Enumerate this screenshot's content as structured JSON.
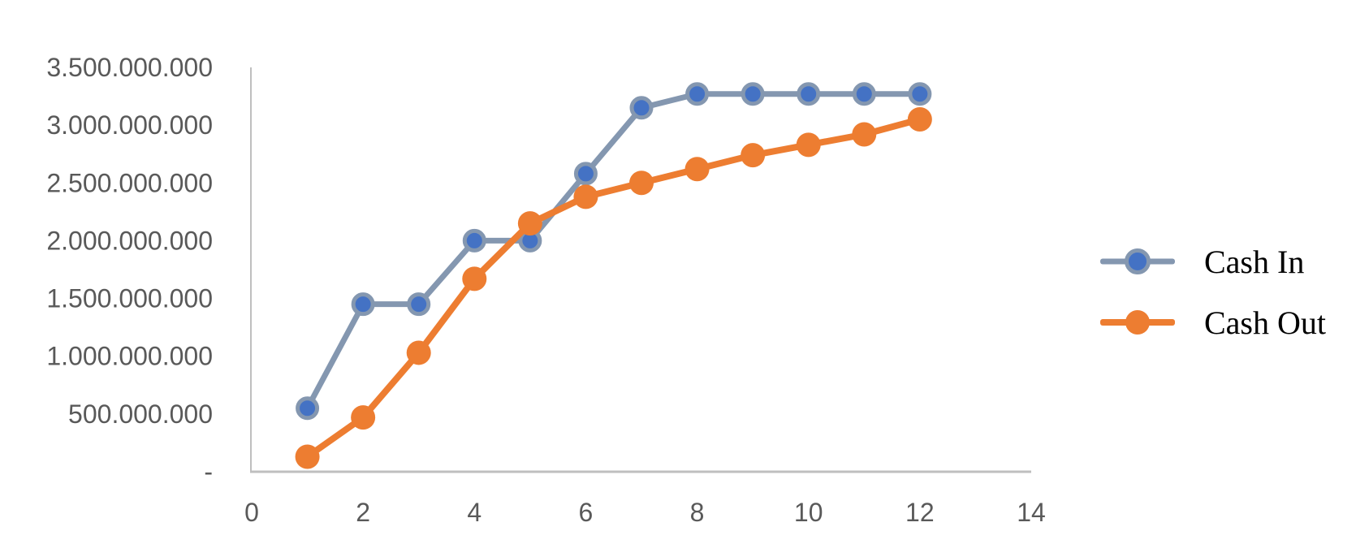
{
  "chart_data": {
    "type": "line",
    "title": "",
    "xlabel": "",
    "ylabel": "",
    "x": [
      1,
      2,
      3,
      4,
      5,
      6,
      7,
      8,
      9,
      10,
      11,
      12
    ],
    "xlim": [
      0,
      14
    ],
    "ylim": [
      0,
      3500000000
    ],
    "x_ticks": [
      0,
      2,
      4,
      6,
      8,
      10,
      12,
      14
    ],
    "x_tick_labels": [
      "0",
      "2",
      "4",
      "6",
      "8",
      "10",
      "12",
      "14"
    ],
    "y_ticks": [
      0,
      500000000,
      1000000000,
      1500000000,
      2000000000,
      2500000000,
      3000000000,
      3500000000
    ],
    "y_tick_labels": [
      "-",
      "500.000.000",
      "1.000.000.000",
      "1.500.000.000",
      "2.000.000.000",
      "2.500.000.000",
      "3.000.000.000",
      "3.500.000.000"
    ],
    "grid": false,
    "legend_position": "right",
    "series": [
      {
        "name": "Cash In",
        "line_color": "#8497B0",
        "marker_color": "#4472C4",
        "values": [
          550000000,
          1450000000,
          1450000000,
          2000000000,
          2000000000,
          2580000000,
          3150000000,
          3270000000,
          3270000000,
          3270000000,
          3270000000,
          3270000000
        ]
      },
      {
        "name": "Cash Out",
        "line_color": "#ED7D31",
        "marker_color": "#ED7D31",
        "values": [
          130000000,
          470000000,
          1030000000,
          1670000000,
          2150000000,
          2380000000,
          2500000000,
          2620000000,
          2740000000,
          2830000000,
          2920000000,
          3050000000
        ]
      }
    ],
    "colors": {
      "axis_line": "#BFBFBF",
      "tick_text": "#595959",
      "legend_text": "#000000"
    }
  }
}
